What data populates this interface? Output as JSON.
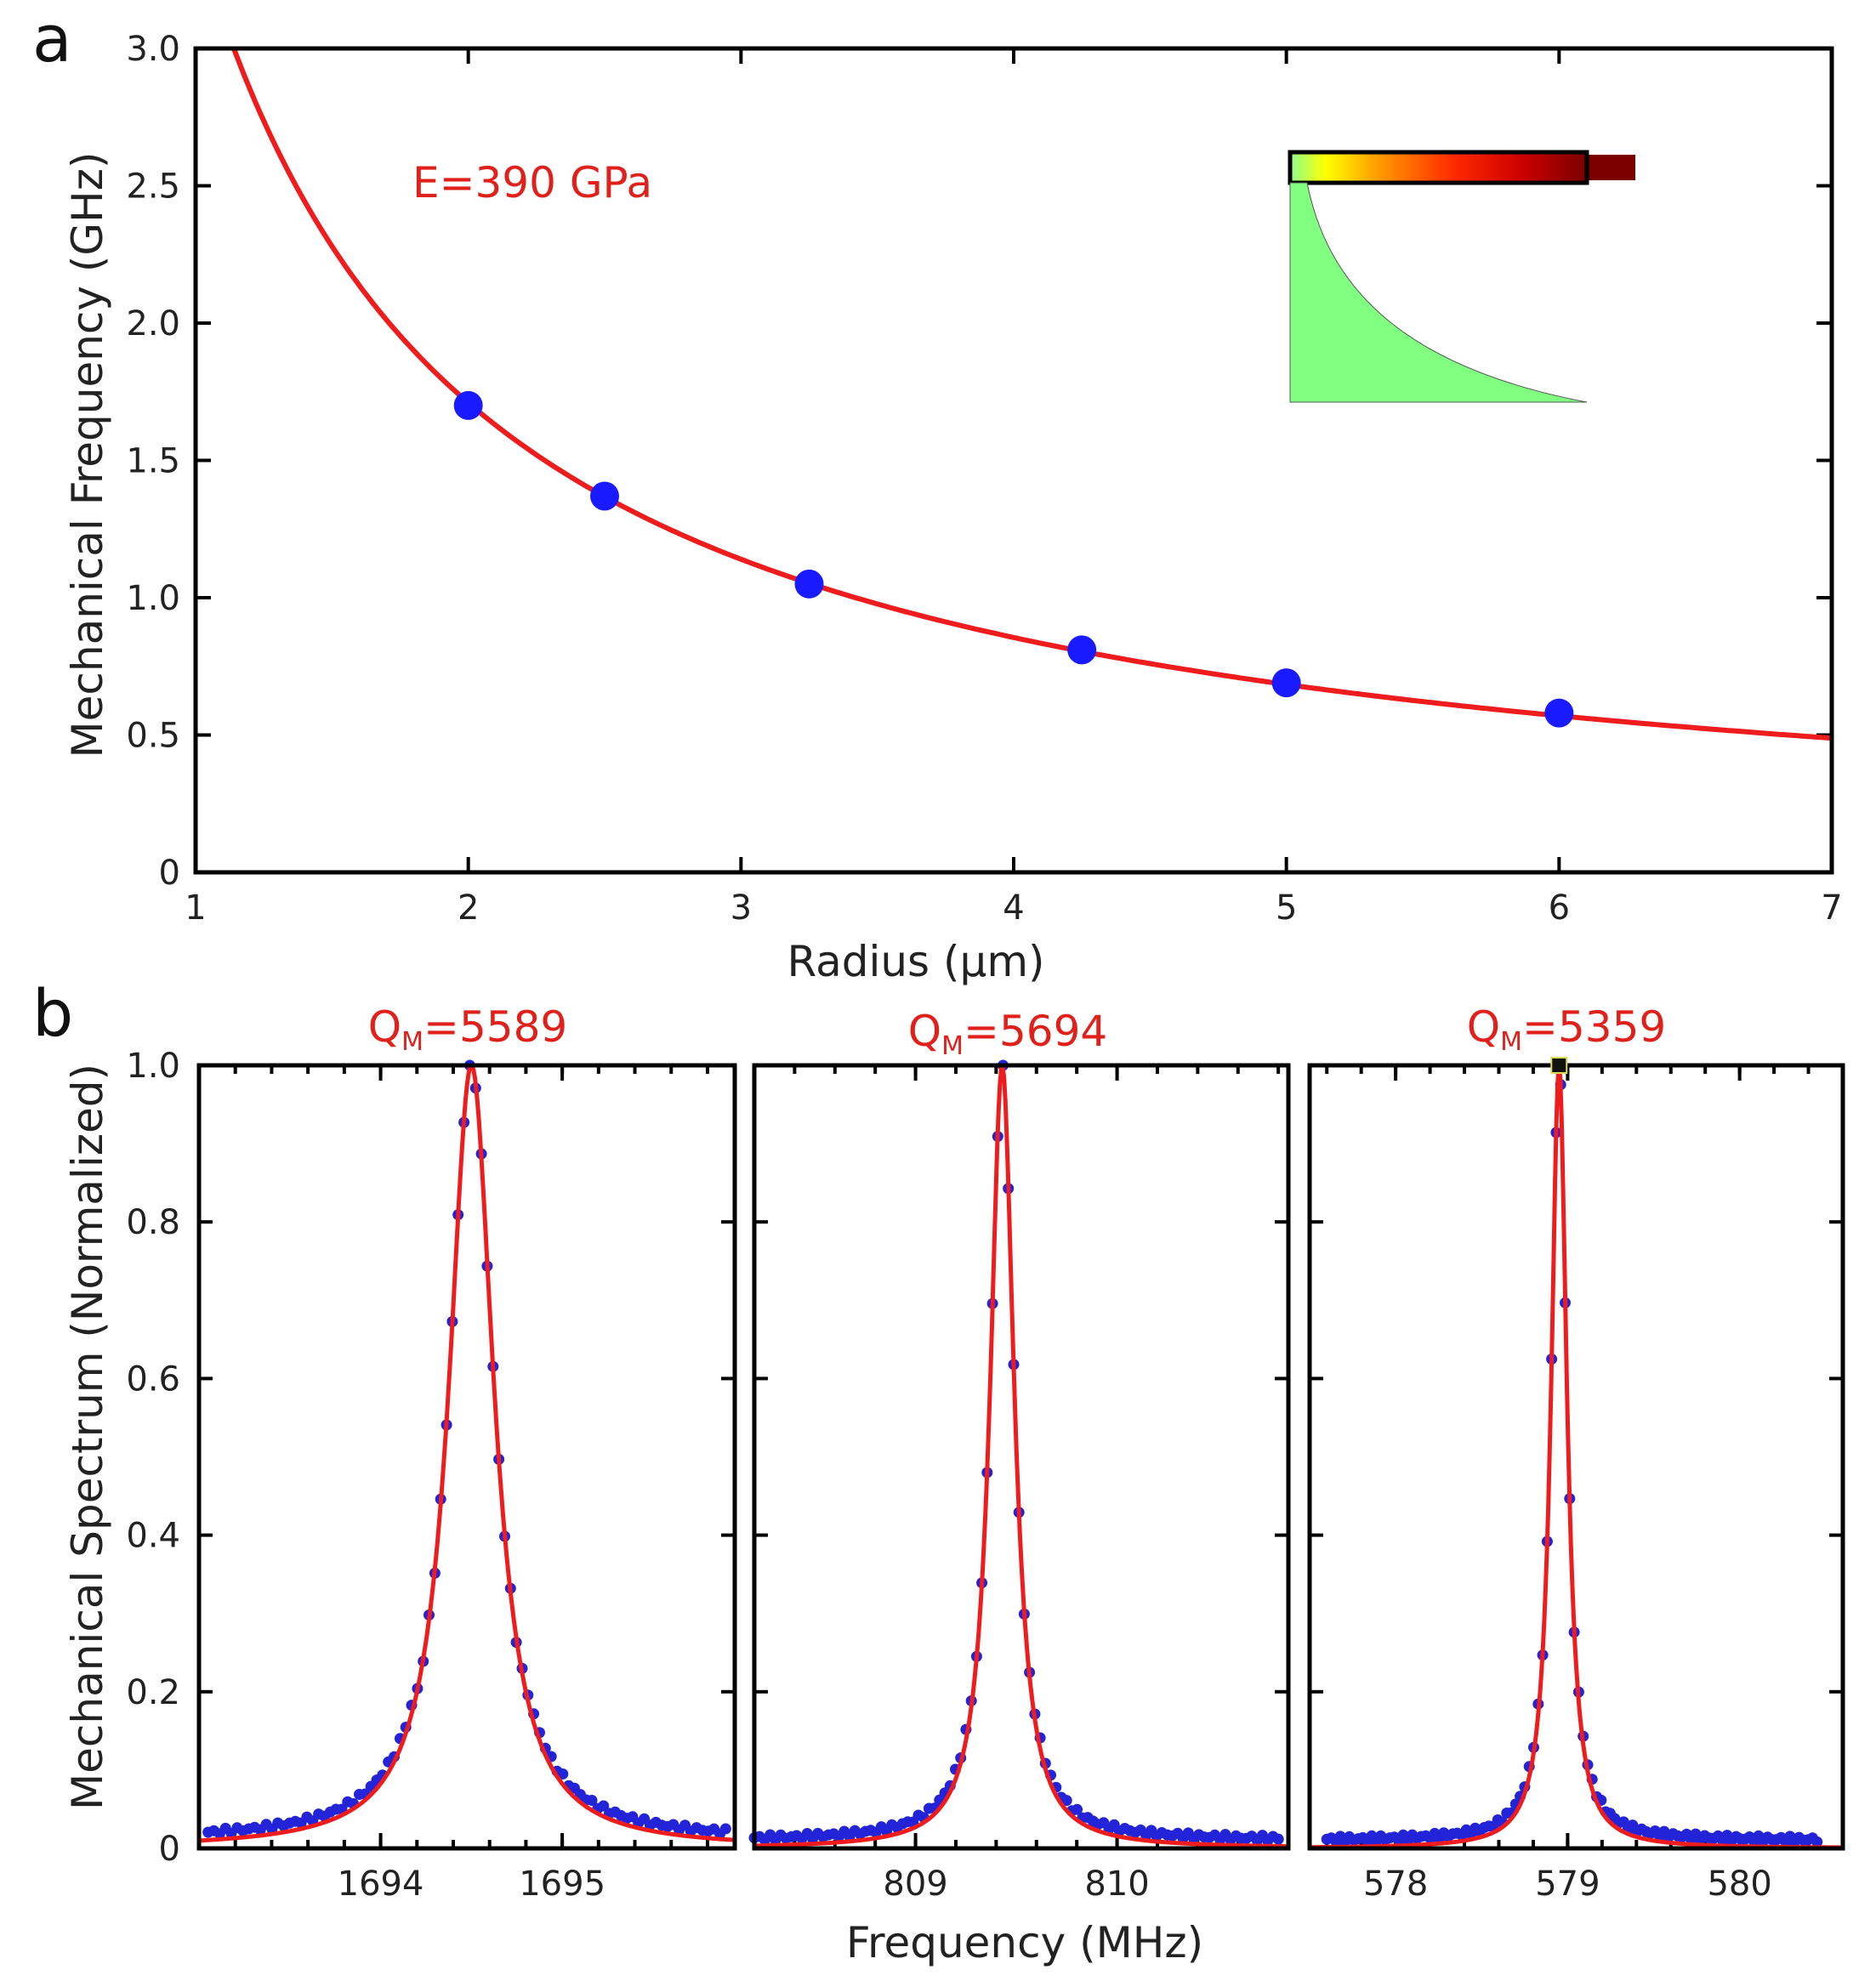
{
  "chart_data": [
    {
      "id": "a",
      "type": "line",
      "panel_label": "a",
      "xlabel": "Radius (µm)",
      "ylabel": "Mechanical Frequency (GHz)",
      "xlim": [
        1,
        7
      ],
      "ylim": [
        0,
        3.0
      ],
      "xticks": [
        1,
        2,
        3,
        4,
        5,
        6,
        7
      ],
      "xtick_labels": [
        "1",
        "2",
        "3",
        "4",
        "5",
        "6",
        "7"
      ],
      "yticks": [
        0,
        0.5,
        1.0,
        1.5,
        2.0,
        2.5,
        3.0
      ],
      "ytick_labels": [
        "0",
        "0.5",
        "1.0",
        "1.5",
        "2.0",
        "2.5",
        "3.0"
      ],
      "annotation": "E=390 GPa",
      "series": [
        {
          "kind": "fit",
          "color": "#ee1c1c",
          "formula_coefficient_ghz_um": 3.42,
          "x_range": [
            1.14,
            7
          ]
        },
        {
          "kind": "points",
          "color": "#1a1aff",
          "x": [
            2.0,
            2.5,
            3.25,
            4.25,
            5.0,
            6.0
          ],
          "y": [
            1.7,
            1.37,
            1.05,
            0.81,
            0.69,
            0.58
          ]
        }
      ],
      "inset": {
        "colorbar_colors": [
          "#90ff90",
          "#ffff00",
          "#ff9a00",
          "#ff2a00",
          "#cc0000",
          "#7a0000"
        ],
        "profile_fill": "#80ff80"
      }
    },
    {
      "id": "b1",
      "type": "line",
      "panel_label": "b",
      "title_main": "Q",
      "title_sub": "M",
      "title_value": "=5589",
      "xlim": [
        1693.0,
        1695.95
      ],
      "ylim": [
        0,
        1.0
      ],
      "xticks": [
        1694,
        1695
      ],
      "xtick_labels": [
        "1694",
        "1695"
      ],
      "yticks": [
        0,
        0.2,
        0.4,
        0.6,
        0.8,
        1.0
      ],
      "ytick_labels": [
        "0",
        "0.2",
        "0.4",
        "0.6",
        "0.8",
        "1.0"
      ],
      "center": 1694.5,
      "hwhm": 0.15,
      "offset": 0.0,
      "points_x_range": [
        1693.05,
        1695.9
      ],
      "points_count": 90
    },
    {
      "id": "b2",
      "type": "line",
      "title_main": "Q",
      "title_sub": "M",
      "title_value": "=5694",
      "xlim": [
        808.2,
        810.85
      ],
      "ylim": [
        0,
        1.0
      ],
      "xticks": [
        809,
        810
      ],
      "xtick_labels": [
        "809",
        "810"
      ],
      "center": 809.43,
      "hwhm": 0.072,
      "offset": 0.0,
      "points_x_range": [
        808.2,
        810.8
      ],
      "points_count": 100
    },
    {
      "id": "b3",
      "type": "line",
      "title_main": "Q",
      "title_sub": "M",
      "title_value": "=5359",
      "xlim": [
        577.5,
        580.6
      ],
      "ylim": [
        0,
        1.0
      ],
      "xticks": [
        578,
        579,
        580
      ],
      "xtick_labels": [
        "578",
        "579",
        "580"
      ],
      "center": 578.95,
      "hwhm": 0.055,
      "offset": 0.0,
      "points_x_range": [
        577.6,
        580.45
      ],
      "points_count": 110
    }
  ],
  "shared": {
    "panel_b_letter": "b",
    "panel_b_ylabel": "Mechanical Spectrum (Normalized)",
    "panel_b_xlabel": "Frequency (MHz)"
  }
}
